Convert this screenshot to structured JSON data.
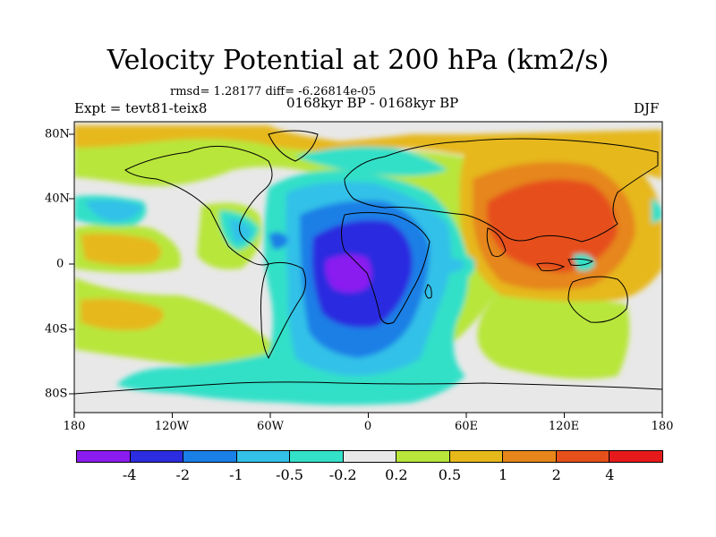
{
  "figure": {
    "title": "Velocity Potential at 200 hPa (km2/s)",
    "stats": "rmsd= 1.28177 diff= -6.26814e-05",
    "experiment": "Expt = tevt81-teix8",
    "period": "0168kyr BP - 0168kyr BP",
    "season": "DJF"
  },
  "axes": {
    "lon_ticks": [
      "180",
      "120W",
      "60W",
      "0",
      "60E",
      "120E",
      "180"
    ],
    "lat_ticks": [
      "80N",
      "40N",
      "0",
      "40S",
      "80S"
    ]
  },
  "colorbar": {
    "colors": [
      "#8a1cf0",
      "#2c2ce0",
      "#1a7fe6",
      "#33c1e8",
      "#33e0c8",
      "#e8e8e8",
      "#b8e63a",
      "#e6b81a",
      "#e6861a",
      "#e6501a",
      "#e61a1a"
    ],
    "labels": [
      "-4",
      "-2",
      "-1",
      "-0.5",
      "-0.2",
      "0.2",
      "0.5",
      "1",
      "2",
      "4"
    ]
  }
}
